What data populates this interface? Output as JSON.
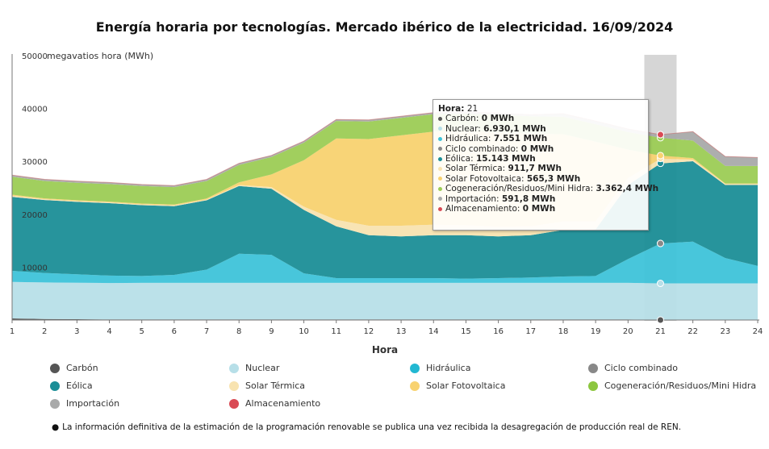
{
  "title": "Energía horaria por tecnologías. Mercado ibérico de la electricidad. 16/09/2024",
  "unit_label": "megavatios hora (MWh)",
  "chart_data": {
    "type": "area",
    "stacked": true,
    "xlabel": "Hora",
    "ylabel": "megavatios hora (MWh)",
    "ylim": [
      0,
      50000
    ],
    "yticks": [
      "50000",
      "40000",
      "30000",
      "20000",
      "10000"
    ],
    "x": [
      1,
      2,
      3,
      4,
      5,
      6,
      7,
      8,
      9,
      10,
      11,
      12,
      13,
      14,
      15,
      16,
      17,
      18,
      19,
      20,
      21,
      22,
      23,
      24
    ],
    "series": [
      {
        "name": "Carbón",
        "color": "#555555",
        "values": [
          300,
          200,
          150,
          100,
          100,
          100,
          100,
          100,
          100,
          100,
          100,
          100,
          100,
          100,
          100,
          100,
          100,
          100,
          100,
          100,
          0,
          0,
          0,
          0
        ]
      },
      {
        "name": "Nuclear",
        "color": "#b7dfe8",
        "values": [
          6900,
          6900,
          6900,
          6900,
          6930,
          6930,
          6930,
          6930,
          6930,
          6930,
          6930,
          6930,
          6930,
          6930,
          6930,
          6930,
          6930,
          6930,
          6930,
          6930,
          6930,
          6930,
          6930,
          6930
        ]
      },
      {
        "name": "Hidráulica",
        "color": "#3ec3d9",
        "values": [
          2100,
          1800,
          1600,
          1400,
          1300,
          1500,
          2500,
          5500,
          5300,
          1800,
          900,
          900,
          900,
          900,
          800,
          900,
          1000,
          1200,
          1300,
          4500,
          7551,
          7900,
          4800,
          3300
        ]
      },
      {
        "name": "Ciclo combinado",
        "color": "#888888",
        "values": [
          0,
          0,
          0,
          0,
          0,
          0,
          0,
          0,
          0,
          0,
          0,
          0,
          0,
          0,
          0,
          0,
          0,
          0,
          0,
          0,
          0,
          0,
          0,
          0
        ]
      },
      {
        "name": "Eólica",
        "color": "#1b8e97",
        "values": [
          14000,
          13800,
          13700,
          13700,
          13400,
          13000,
          13100,
          12800,
          12500,
          12000,
          9800,
          8100,
          7900,
          8100,
          8200,
          7900,
          8000,
          8800,
          8800,
          14000,
          15143,
          15200,
          13800,
          15300
        ]
      },
      {
        "name": "Solar Térmica",
        "color": "#f8e3b0",
        "values": [
          200,
          150,
          150,
          150,
          150,
          150,
          150,
          200,
          300,
          600,
          1200,
          1800,
          2000,
          2000,
          1900,
          1800,
          1700,
          1600,
          1500,
          1300,
          911.7,
          300,
          200,
          200
        ]
      },
      {
        "name": "Solar Fotovoltaica",
        "color": "#f8d270",
        "values": [
          200,
          150,
          150,
          150,
          150,
          150,
          200,
          500,
          2400,
          8800,
          15400,
          16400,
          17100,
          17600,
          17800,
          17900,
          17500,
          16500,
          15100,
          5400,
          565.3,
          300,
          100,
          100
        ]
      },
      {
        "name": "Cogeneración/Residuos/Mini Hidra",
        "color": "#9ccc55",
        "values": [
          3400,
          3300,
          3300,
          3300,
          3300,
          3300,
          3300,
          3300,
          3300,
          3300,
          3300,
          3300,
          3300,
          3300,
          3300,
          3300,
          3300,
          3300,
          3300,
          3300,
          3362.4,
          3300,
          3300,
          3300
        ]
      },
      {
        "name": "Importación",
        "color": "#a9aaaa",
        "values": [
          300,
          300,
          300,
          300,
          300,
          300,
          300,
          300,
          300,
          300,
          300,
          300,
          300,
          300,
          300,
          300,
          300,
          600,
          600,
          600,
          591.8,
          1700,
          1800,
          1600
        ]
      },
      {
        "name": "Almacenamiento",
        "color": "#d94a54",
        "values": [
          0,
          0,
          0,
          0,
          0,
          0,
          0,
          0,
          0,
          0,
          0,
          0,
          0,
          0,
          0,
          0,
          0,
          0,
          0,
          0,
          0,
          0,
          0,
          0
        ]
      }
    ],
    "highlight_hour": 21
  },
  "tooltip": {
    "hour_label": "Hora:",
    "hour_value": "21",
    "rows": [
      {
        "label": "Carbón:",
        "value": "0 MWh",
        "color": "#555555"
      },
      {
        "label": "Nuclear:",
        "value": "6.930,1 MWh",
        "color": "#b7dfe8"
      },
      {
        "label": "Hidráulica:",
        "value": "7.551 MWh",
        "color": "#3ec3d9"
      },
      {
        "label": "Ciclo combinado:",
        "value": "0 MWh",
        "color": "#888888"
      },
      {
        "label": "Eólica:",
        "value": "15.143 MWh",
        "color": "#1b8e97"
      },
      {
        "label": "Solar Térmica:",
        "value": "911,7 MWh",
        "color": "#f8e3b0"
      },
      {
        "label": "Solar Fotovoltaica:",
        "value": "565,3 MWh",
        "color": "#f8d270"
      },
      {
        "label": "Cogeneración/Residuos/Mini Hidra:",
        "value": "3.362,4 MWh",
        "color": "#9ccc55"
      },
      {
        "label": "Importación:",
        "value": "591,8 MWh",
        "color": "#a9aaaa"
      },
      {
        "label": "Almacenamiento:",
        "value": "0 MWh",
        "color": "#d94a54"
      }
    ]
  },
  "legend": [
    {
      "label": "Carbón",
      "color": "#555555"
    },
    {
      "label": "Nuclear",
      "color": "#b7dfe8"
    },
    {
      "label": "Hidráulica",
      "color": "#22b8d2"
    },
    {
      "label": "Ciclo combinado",
      "color": "#888888"
    },
    {
      "label": "Eólica",
      "color": "#1b8e97"
    },
    {
      "label": "Solar Térmica",
      "color": "#f8e3b0"
    },
    {
      "label": "Solar Fotovoltaica",
      "color": "#f8d270"
    },
    {
      "label": "Cogeneración/Residuos/Mini Hidra",
      "color": "#8cc63f"
    },
    {
      "label": "Importación",
      "color": "#a9aaaa"
    },
    {
      "label": "Almacenamiento",
      "color": "#d94a54"
    }
  ],
  "note": "La información definitiva de la estimación de la programación renovable se publica una vez recibida la desagregación de producción real de REN."
}
